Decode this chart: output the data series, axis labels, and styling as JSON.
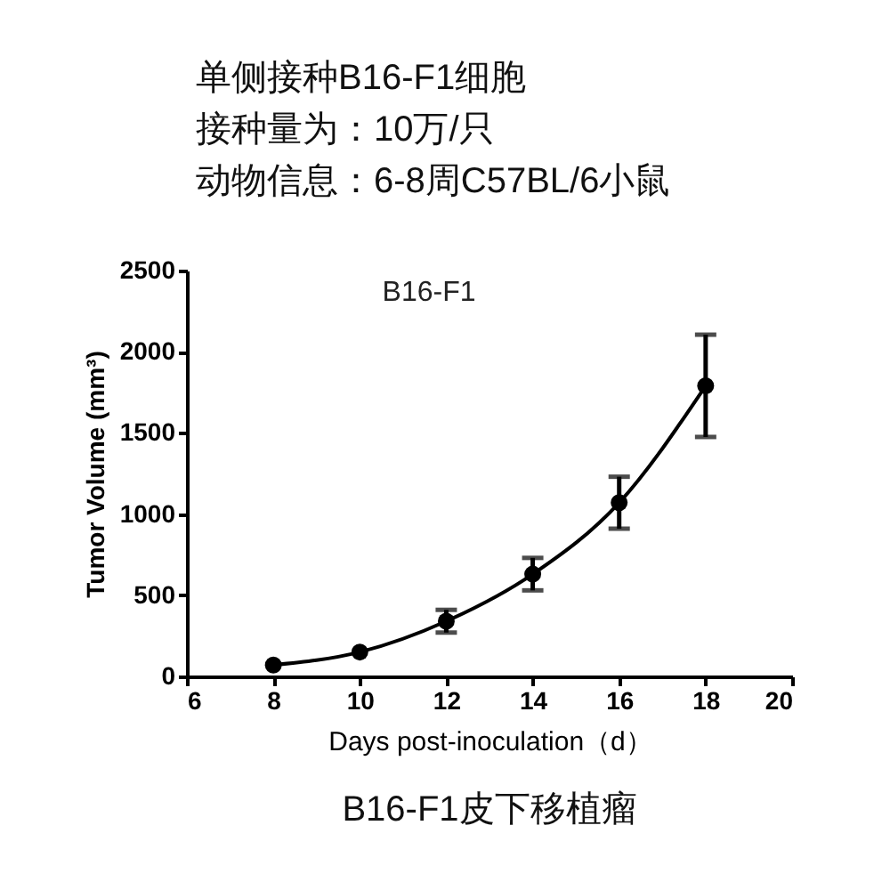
{
  "chart_data": {
    "type": "line",
    "title": "B16-F1",
    "xlabel": "Days post-inoculation（d）",
    "ylabel": "Tumor Volume (mm³)",
    "annotations": [
      "单侧接种B16-F1细胞",
      "接种量为：10万/只",
      "动物信息：6-8周C57BL/6小鼠",
      "B16-F1皮下移植瘤"
    ],
    "x": [
      8,
      10,
      12,
      14,
      16,
      18
    ],
    "series": [
      {
        "color": "#000000",
        "values": [
          70,
          150,
          340,
          630,
          1070,
          1790
        ],
        "errors": [
          null,
          null,
          70,
          100,
          160,
          315
        ]
      }
    ],
    "xlim": [
      6,
      20
    ],
    "xticks": [
      6,
      8,
      10,
      12,
      14,
      16,
      18,
      20
    ],
    "ylim": [
      0,
      2500
    ],
    "yticks": [
      0,
      500,
      1000,
      1500,
      2000,
      2500
    ],
    "marker": "circle",
    "line_style": "solid",
    "grid": false
  }
}
